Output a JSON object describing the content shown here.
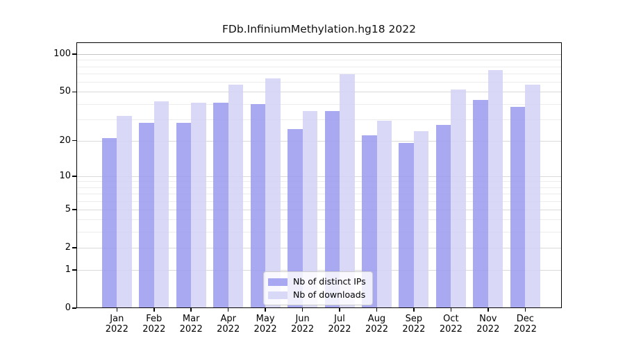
{
  "title": "FDb.InfiniumMethylation.hg18 2022",
  "chart_data": {
    "type": "bar",
    "title": "FDb.InfiniumMethylation.hg18 2022",
    "year_label": "2022",
    "categories": [
      "Jan",
      "Feb",
      "Mar",
      "Apr",
      "May",
      "Jun",
      "Jul",
      "Aug",
      "Sep",
      "Oct",
      "Nov",
      "Dec"
    ],
    "series": [
      {
        "name": "Nb of distinct IPs",
        "color": "#9a9af0",
        "values": [
          21,
          28,
          28,
          41,
          40,
          25,
          35,
          22,
          19,
          27,
          43,
          38
        ]
      },
      {
        "name": "Nb of downloads",
        "color": "#d2d2f6",
        "values": [
          32,
          42,
          41,
          57,
          64,
          35,
          69,
          29,
          24,
          52,
          75,
          57
        ]
      }
    ],
    "yscale": "log1p",
    "ylim": [
      0,
      100
    ],
    "yticks": [
      {
        "value": 100,
        "label": "100"
      },
      {
        "value": 50,
        "label": "50"
      },
      {
        "value": 20,
        "label": "20"
      },
      {
        "value": 10,
        "label": "10"
      },
      {
        "value": 5,
        "label": "5"
      },
      {
        "value": 2,
        "label": "2"
      },
      {
        "value": 1,
        "label": "1"
      },
      {
        "value": 0,
        "label": "0"
      }
    ],
    "minor_gridlines": [
      3,
      4,
      6,
      7,
      8,
      9,
      30,
      40,
      60,
      70,
      80,
      90
    ],
    "grid": true,
    "legend_position": "lower center"
  }
}
